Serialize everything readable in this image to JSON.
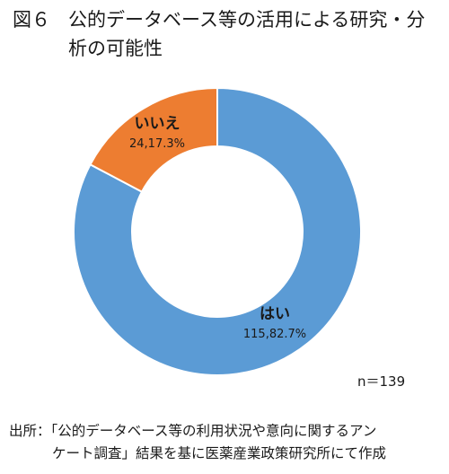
{
  "figure": {
    "number": "図６",
    "title_line1": "公的データベース等の活用による研究・分",
    "title_line2": "析の可能性"
  },
  "chart_data": {
    "type": "pie",
    "donut": true,
    "categories": [
      "はい",
      "いいえ"
    ],
    "values": [
      115,
      24
    ],
    "percents": [
      82.7,
      17.3
    ],
    "data_labels": [
      "115,82.7%",
      "24,17.3%"
    ],
    "colors": [
      "#5B9BD5",
      "#ED7D31"
    ]
  },
  "n_label": "n＝139",
  "source": {
    "line1": "出所：「公的データベース等の利用状況や意向に関するアン",
    "line2": "ケート調査」結果を基に医薬産業政策研究所にて作成"
  }
}
